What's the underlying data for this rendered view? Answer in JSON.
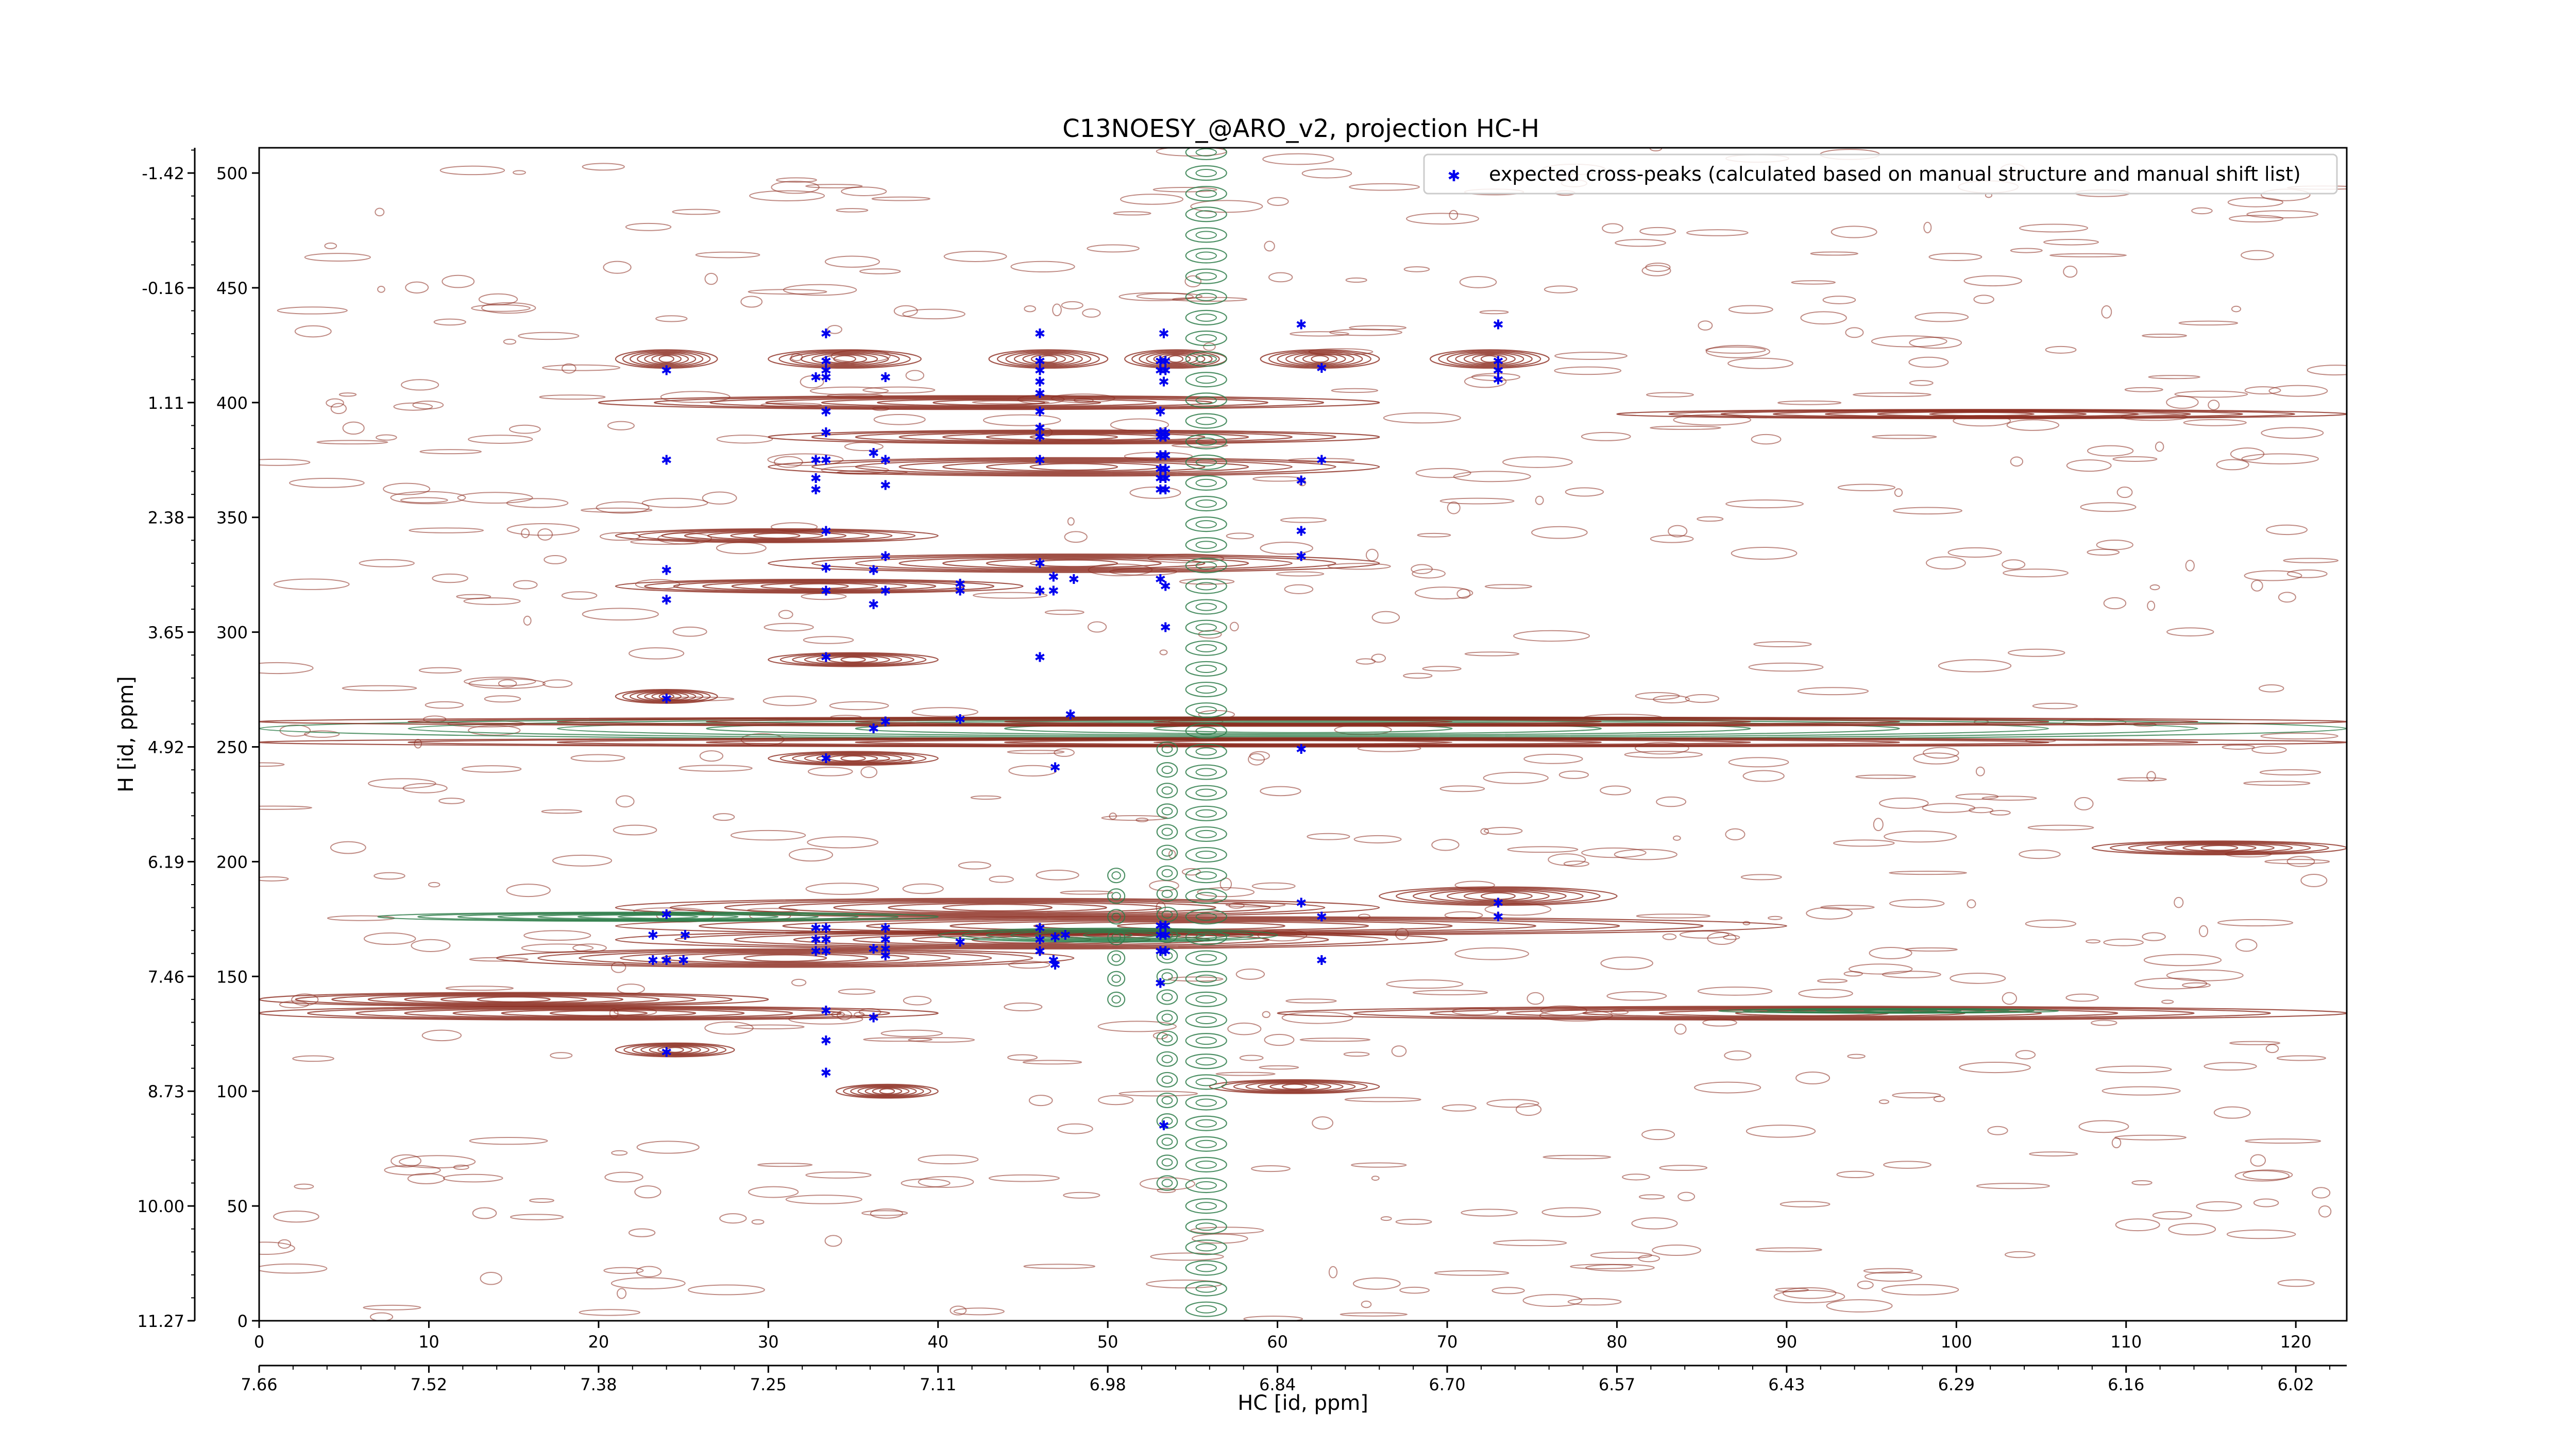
{
  "chart_data": {
    "type": "scatter",
    "title": "C13NOESY_@ARO_v2, projection HC-H",
    "xlabel": "HC [id, ppm]",
    "ylabel": "H [id, ppm]",
    "xlim": [
      0,
      123
    ],
    "ylim": [
      0,
      511
    ],
    "x_ticks_index": [
      0,
      10,
      20,
      30,
      40,
      50,
      60,
      70,
      80,
      90,
      100,
      110,
      120
    ],
    "x_ticks_ppm": [
      "7.66",
      "7.52",
      "7.38",
      "7.25",
      "7.11",
      "6.98",
      "6.84",
      "6.70",
      "6.57",
      "6.43",
      "6.29",
      "6.16",
      "6.02"
    ],
    "y_ticks_index": [
      0,
      50,
      100,
      150,
      200,
      250,
      300,
      350,
      400,
      450,
      500
    ],
    "y_ticks_ppm": [
      "11.27",
      "10.00",
      "8.73",
      "7.46",
      "6.19",
      "4.92",
      "3.65",
      "2.38",
      "1.11",
      "-0.16",
      "-1.42"
    ],
    "legend": {
      "position": "top-right",
      "entries": [
        "expected cross-peaks (calculated based on manual structure and manual shift list)"
      ]
    },
    "colors": {
      "positive_contours": "#8b2a1e",
      "negative_contours": "#2e7d4a",
      "peaks": "#0000ee",
      "axes": "#000000"
    },
    "contour_bands": [
      {
        "y": 419,
        "x0": 21,
        "x1": 27,
        "h": 4,
        "sign": "pos"
      },
      {
        "y": 419,
        "x0": 30,
        "x1": 39,
        "h": 4,
        "sign": "pos"
      },
      {
        "y": 419,
        "x0": 43,
        "x1": 50,
        "h": 4,
        "sign": "pos"
      },
      {
        "y": 419,
        "x0": 51,
        "x1": 57,
        "h": 4,
        "sign": "pos"
      },
      {
        "y": 419,
        "x0": 59,
        "x1": 66,
        "h": 4,
        "sign": "pos"
      },
      {
        "y": 419,
        "x0": 69,
        "x1": 76,
        "h": 4,
        "sign": "pos"
      },
      {
        "y": 400,
        "x0": 20,
        "x1": 66,
        "h": 3,
        "sign": "pos"
      },
      {
        "y": 385,
        "x0": 30,
        "x1": 66,
        "h": 3,
        "sign": "pos"
      },
      {
        "y": 372,
        "x0": 30,
        "x1": 66,
        "h": 4,
        "sign": "pos"
      },
      {
        "y": 342,
        "x0": 21,
        "x1": 40,
        "h": 3,
        "sign": "pos"
      },
      {
        "y": 330,
        "x0": 30,
        "x1": 66,
        "h": 4,
        "sign": "pos"
      },
      {
        "y": 320,
        "x0": 21,
        "x1": 45,
        "h": 3,
        "sign": "pos"
      },
      {
        "y": 288,
        "x0": 30,
        "x1": 40,
        "h": 3,
        "sign": "pos"
      },
      {
        "y": 272,
        "x0": 21,
        "x1": 27,
        "h": 3,
        "sign": "pos"
      },
      {
        "y": 258,
        "x0": 0,
        "x1": 123,
        "h": 5,
        "sign": "neg"
      },
      {
        "y": 261,
        "x0": 0,
        "x1": 123,
        "h": 2,
        "sign": "pos"
      },
      {
        "y": 252,
        "x0": 0,
        "x1": 123,
        "h": 2,
        "sign": "pos"
      },
      {
        "y": 245,
        "x0": 30,
        "x1": 40,
        "h": 3,
        "sign": "pos"
      },
      {
        "y": 395,
        "x0": 80,
        "x1": 123,
        "h": 2,
        "sign": "pos"
      },
      {
        "y": 206,
        "x0": 108,
        "x1": 123,
        "h": 3,
        "sign": "pos"
      },
      {
        "y": 180,
        "x0": 21,
        "x1": 66,
        "h": 4,
        "sign": "pos"
      },
      {
        "y": 172,
        "x0": 21,
        "x1": 90,
        "h": 4,
        "sign": "pos"
      },
      {
        "y": 166,
        "x0": 21,
        "x1": 70,
        "h": 4,
        "sign": "pos"
      },
      {
        "y": 158,
        "x0": 14,
        "x1": 48,
        "h": 4,
        "sign": "pos"
      },
      {
        "y": 185,
        "x0": 66,
        "x1": 80,
        "h": 4,
        "sign": "pos"
      },
      {
        "y": 176,
        "x0": 7,
        "x1": 40,
        "h": 2,
        "sign": "neg"
      },
      {
        "y": 168,
        "x0": 40,
        "x1": 60,
        "h": 3,
        "sign": "neg"
      },
      {
        "y": 140,
        "x0": 0,
        "x1": 30,
        "h": 3,
        "sign": "pos"
      },
      {
        "y": 134,
        "x0": 0,
        "x1": 40,
        "h": 3,
        "sign": "pos"
      },
      {
        "y": 134,
        "x0": 60,
        "x1": 123,
        "h": 3,
        "sign": "pos"
      },
      {
        "y": 135,
        "x0": 86,
        "x1": 106,
        "h": 1,
        "sign": "neg"
      },
      {
        "y": 118,
        "x0": 21,
        "x1": 28,
        "h": 3,
        "sign": "pos"
      },
      {
        "y": 100,
        "x0": 34,
        "x1": 40,
        "h": 3,
        "sign": "pos"
      },
      {
        "y": 102,
        "x0": 56,
        "x1": 66,
        "h": 3,
        "sign": "pos"
      }
    ],
    "vertical_bands": [
      {
        "x": 55.8,
        "y0": 5,
        "y1": 511,
        "w": 2.4,
        "sign": "neg"
      },
      {
        "x": 53.5,
        "y0": 60,
        "y1": 250,
        "w": 1.2,
        "sign": "neg"
      },
      {
        "x": 50.5,
        "y0": 140,
        "y1": 200,
        "w": 1.0,
        "sign": "neg"
      }
    ],
    "points": [
      [
        24,
        414
      ],
      [
        24,
        375
      ],
      [
        24,
        327
      ],
      [
        24,
        314
      ],
      [
        24,
        271
      ],
      [
        24,
        177
      ],
      [
        23.2,
        168
      ],
      [
        25.1,
        168
      ],
      [
        23.2,
        157
      ],
      [
        24,
        157
      ],
      [
        25,
        157
      ],
      [
        24,
        117
      ],
      [
        33.4,
        430
      ],
      [
        33.4,
        418
      ],
      [
        33.4,
        414
      ],
      [
        32.8,
        411
      ],
      [
        33.4,
        411
      ],
      [
        36.9,
        411
      ],
      [
        33.4,
        396
      ],
      [
        33.4,
        387
      ],
      [
        32.8,
        375
      ],
      [
        33.4,
        375
      ],
      [
        32.8,
        367
      ],
      [
        32.8,
        362
      ],
      [
        36.2,
        378
      ],
      [
        36.9,
        375
      ],
      [
        36.9,
        364
      ],
      [
        33.4,
        344
      ],
      [
        33.4,
        328
      ],
      [
        33.4,
        318
      ],
      [
        36.2,
        327
      ],
      [
        36.9,
        333
      ],
      [
        36.9,
        318
      ],
      [
        36.2,
        312
      ],
      [
        33.4,
        289
      ],
      [
        33.4,
        245
      ],
      [
        36.2,
        258
      ],
      [
        36.9,
        261
      ],
      [
        32.8,
        171
      ],
      [
        33.4,
        171
      ],
      [
        32.8,
        166
      ],
      [
        33.4,
        166
      ],
      [
        36.9,
        171
      ],
      [
        36.9,
        166
      ],
      [
        32.8,
        161
      ],
      [
        33.4,
        161
      ],
      [
        36.2,
        162
      ],
      [
        36.9,
        162
      ],
      [
        36.9,
        159
      ],
      [
        33.4,
        135
      ],
      [
        36.2,
        132
      ],
      [
        33.4,
        122
      ],
      [
        33.4,
        108
      ],
      [
        41.3,
        321
      ],
      [
        41.3,
        318
      ],
      [
        41.3,
        262
      ],
      [
        41.3,
        165
      ],
      [
        46,
        430
      ],
      [
        46,
        418
      ],
      [
        46,
        414
      ],
      [
        46,
        409
      ],
      [
        46,
        404
      ],
      [
        46,
        396
      ],
      [
        46,
        389
      ],
      [
        46,
        385
      ],
      [
        46,
        375
      ],
      [
        46,
        330
      ],
      [
        46,
        318
      ],
      [
        46,
        289
      ],
      [
        46.8,
        324
      ],
      [
        46.8,
        318
      ],
      [
        48,
        323
      ],
      [
        47.8,
        264
      ],
      [
        46.9,
        241
      ],
      [
        46,
        171
      ],
      [
        46,
        166
      ],
      [
        46,
        161
      ],
      [
        46.8,
        157
      ],
      [
        46.9,
        167
      ],
      [
        47.5,
        168
      ],
      [
        46.9,
        155
      ],
      [
        53.3,
        430
      ],
      [
        53.1,
        418
      ],
      [
        53.4,
        418
      ],
      [
        53.1,
        414
      ],
      [
        53.4,
        414
      ],
      [
        53.3,
        409
      ],
      [
        53.1,
        396
      ],
      [
        53.1,
        387
      ],
      [
        53.4,
        387
      ],
      [
        53.1,
        385
      ],
      [
        53.4,
        385
      ],
      [
        53.1,
        377
      ],
      [
        53.4,
        377
      ],
      [
        53.1,
        371
      ],
      [
        53.4,
        371
      ],
      [
        53.1,
        367
      ],
      [
        53.4,
        367
      ],
      [
        53.1,
        362
      ],
      [
        53.4,
        362
      ],
      [
        53.1,
        323
      ],
      [
        53.4,
        320
      ],
      [
        53.4,
        302
      ],
      [
        53.1,
        172
      ],
      [
        53.4,
        172
      ],
      [
        53.1,
        168
      ],
      [
        53.4,
        168
      ],
      [
        53.1,
        161
      ],
      [
        53.4,
        161
      ],
      [
        53.1,
        147
      ],
      [
        53.3,
        85
      ],
      [
        61.4,
        434
      ],
      [
        62.6,
        415
      ],
      [
        62.6,
        375
      ],
      [
        61.4,
        366
      ],
      [
        61.4,
        344
      ],
      [
        61.4,
        333
      ],
      [
        61.4,
        249
      ],
      [
        61.4,
        182
      ],
      [
        62.6,
        176
      ],
      [
        62.6,
        157
      ],
      [
        73,
        434
      ],
      [
        73,
        418
      ],
      [
        73,
        414
      ],
      [
        73,
        410
      ],
      [
        73,
        182
      ],
      [
        73,
        176
      ]
    ]
  }
}
